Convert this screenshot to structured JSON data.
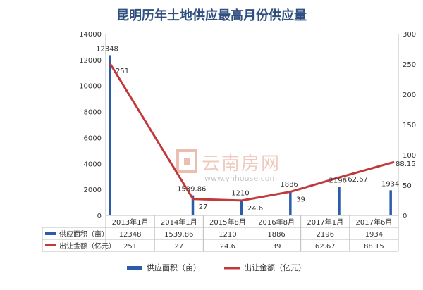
{
  "chart_data": {
    "type": "bar+line",
    "title": "昆明历年土地供应最高月份供应量",
    "categories": [
      "2013年1月",
      "2014年1月",
      "2015年8月",
      "2016年8月",
      "2017年1月",
      "2017年6月"
    ],
    "series": [
      {
        "name": "供应面积（亩）",
        "type": "bar",
        "axis": "left",
        "values": [
          12348,
          1539.86,
          1210,
          1886,
          2196,
          1934
        ],
        "labels": [
          "12348",
          "1539.86",
          "1210",
          "1886",
          "2196",
          "1934"
        ]
      },
      {
        "name": "出让金额（亿元）",
        "type": "line",
        "axis": "right",
        "values": [
          251,
          27,
          24.6,
          39,
          62.67,
          88.15
        ],
        "labels": [
          "251",
          "27",
          "24.6",
          "39",
          "62.67",
          "88.15"
        ]
      }
    ],
    "y_left": {
      "ylim": [
        0,
        14000
      ],
      "ticks": [
        "0",
        "2000",
        "4000",
        "6000",
        "8000",
        "10000",
        "12000",
        "14000"
      ]
    },
    "y_right": {
      "ylim": [
        0,
        300
      ],
      "ticks": [
        "0",
        "50",
        "100",
        "150",
        "200",
        "250",
        "300"
      ]
    },
    "table": {
      "row1": [
        "12348",
        "1539.86",
        "1210",
        "1886",
        "2196",
        "1934"
      ],
      "row2": [
        "251",
        "27",
        "24.6",
        "39",
        "62.67",
        "88.15"
      ]
    },
    "legend": {
      "position": "bottom"
    },
    "grid": false,
    "colors": {
      "bar": "#2a5caa",
      "line": "#c0393b",
      "text": "#333333",
      "axis": "#bbbbbb",
      "title": "#2f4f7f"
    }
  },
  "watermark": {
    "brand": "云南房网",
    "url": "www.ynhouse.com"
  }
}
